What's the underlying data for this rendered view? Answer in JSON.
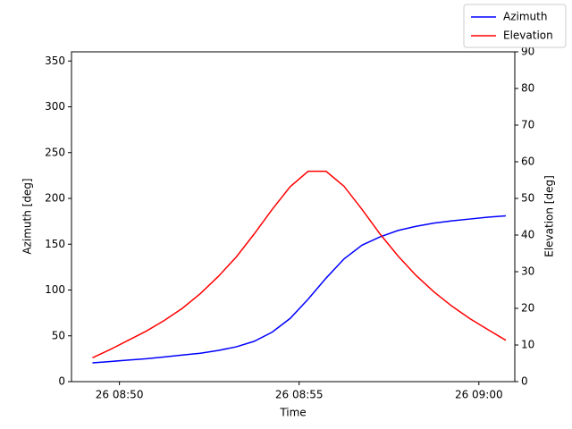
{
  "chart_data": {
    "type": "line",
    "x_label": "Time",
    "y_label": "Azimuth [deg]",
    "y2_label": "Elevation [deg]",
    "x": [
      "26 08:49:15",
      "26 08:49:45",
      "26 08:50:15",
      "26 08:50:45",
      "26 08:51:15",
      "26 08:51:45",
      "26 08:52:15",
      "26 08:52:45",
      "26 08:53:15",
      "26 08:53:45",
      "26 08:54:15",
      "26 08:54:45",
      "26 08:55:15",
      "26 08:55:45",
      "26 08:56:15",
      "26 08:56:45",
      "26 08:57:15",
      "26 08:57:45",
      "26 08:58:15",
      "26 08:58:45",
      "26 08:59:15",
      "26 08:59:45",
      "26 09:00:15",
      "26 09:00:45"
    ],
    "series": [
      {
        "name": "Azimuth",
        "color": "#0000ff",
        "axis": "y",
        "values": [
          20.5,
          22,
          23.5,
          25,
          27,
          29,
          31,
          34,
          38,
          44,
          54,
          69,
          90,
          113,
          134,
          149,
          158,
          165,
          169.5,
          173,
          175.5,
          177.5,
          179.5,
          181
        ]
      },
      {
        "name": "Elevation",
        "color": "#ff0000",
        "axis": "y2",
        "values": [
          6.5,
          8.8,
          11.3,
          13.8,
          16.7,
          20,
          24,
          28.7,
          34,
          40.3,
          47,
          53.2,
          57.4,
          57.4,
          53.3,
          47,
          40.3,
          34.3,
          29,
          24.5,
          20.6,
          17.2,
          14.2,
          11.3
        ]
      }
    ],
    "xlim": [
      "26 08:48:40",
      "26 09:01:00"
    ],
    "xticks": [
      "26 08:50",
      "26 08:55",
      "26 09:00"
    ],
    "ylim": [
      0,
      360
    ],
    "yticks": [
      0,
      50,
      100,
      150,
      200,
      250,
      300,
      350
    ],
    "y2lim": [
      0,
      90
    ],
    "y2ticks": [
      0,
      10,
      20,
      30,
      40,
      50,
      60,
      70,
      80,
      90
    ],
    "grid": false,
    "legend": "upper right"
  }
}
